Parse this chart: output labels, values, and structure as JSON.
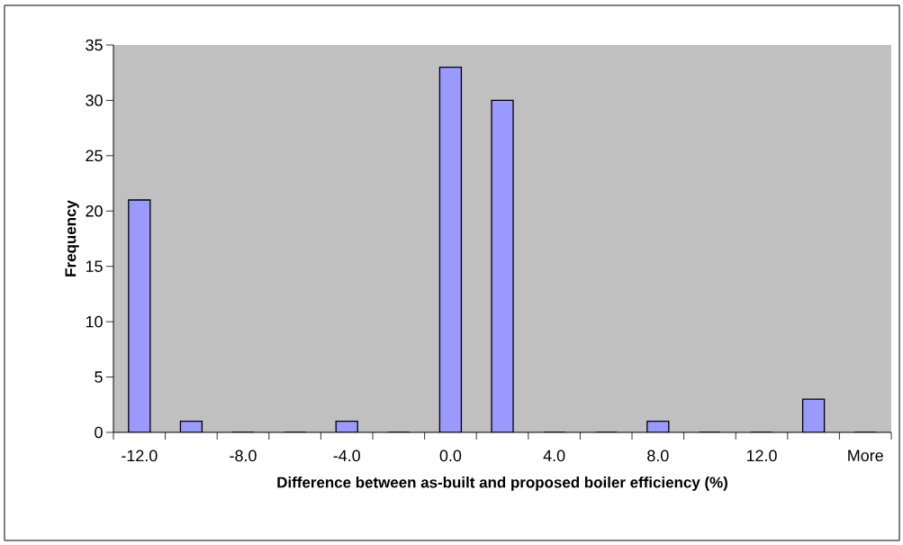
{
  "chart_data": {
    "type": "bar",
    "xlabel": "Difference between as-built and proposed boiler efficiency (%)",
    "ylabel": "Frequency",
    "categories": [
      "-12.0",
      null,
      "-8.0",
      null,
      "-4.0",
      null,
      "0.0",
      null,
      "4.0",
      null,
      "8.0",
      null,
      "12.0",
      null,
      "More"
    ],
    "values": [
      21,
      1,
      0,
      0,
      1,
      0,
      33,
      30,
      0,
      0,
      1,
      0,
      0,
      3,
      0
    ],
    "color": "#9999ff",
    "ylim": [
      0,
      35
    ],
    "yticks": [
      0,
      5,
      10,
      15,
      20,
      25,
      30,
      35
    ],
    "grid": false
  }
}
